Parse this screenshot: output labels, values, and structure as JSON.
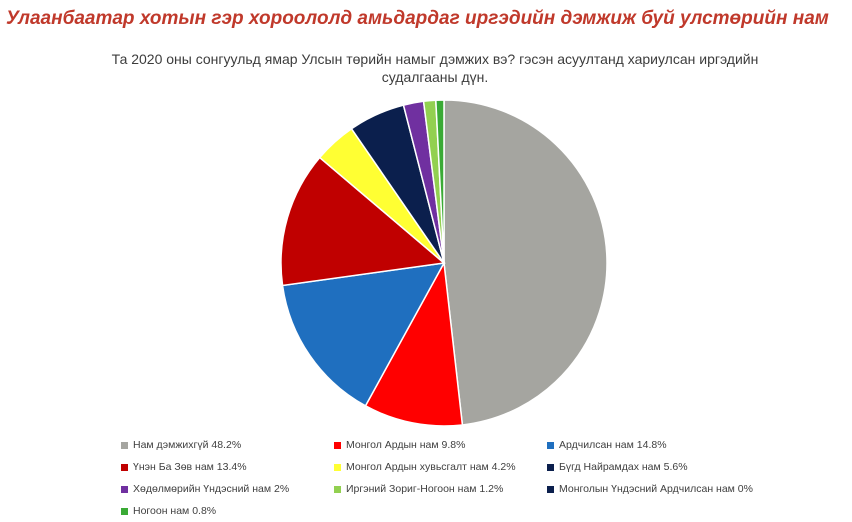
{
  "header": {
    "title": "Улаанбаатар хотын гэр хороололд амьдардаг иргэдийн дэмжиж буй улстөрийн нам"
  },
  "chart_data": {
    "type": "pie",
    "title_lines": [
      "Та 2020 оны сонгуульд ямар Улсын төрийн намыг дэмжих вэ? гэсэн асуултанд хариулсан иргэдийн",
      "судалгааны дүн."
    ],
    "legend_position": "bottom",
    "slices": [
      {
        "label": "Нам дэмжихгүй 48.2%",
        "value": 48.2,
        "color": "#a5a5a0"
      },
      {
        "label": "Монгол Ардын нам 9.8%",
        "value": 9.8,
        "color": "#ff0000"
      },
      {
        "label": "Ардчилсан нам 14.8%",
        "value": 14.8,
        "color": "#1f6fbf"
      },
      {
        "label": "Үнэн Ба Зөв нам 13.4%",
        "value": 13.4,
        "color": "#c00000"
      },
      {
        "label": "Монгол Ардын хувьсгалт нам 4.2%",
        "value": 4.2,
        "color": "#ffff33"
      },
      {
        "label": "Бүгд Найрамдах нам 5.6%",
        "value": 5.6,
        "color": "#0b1f4d"
      },
      {
        "label": "Хөдөлмөрийн Үндэсний нам 2%",
        "value": 2.0,
        "color": "#7030a0"
      },
      {
        "label": "Иргэний Зориг-Ногоон нам 1.2%",
        "value": 1.2,
        "color": "#92d050"
      },
      {
        "label": "Монголын Үндэсний Ардчилсан нам 0%",
        "value": 0.0,
        "color": "#0b1f4d"
      },
      {
        "label": "Ногоон нам 0.8%",
        "value": 0.8,
        "color": "#3aaa35"
      }
    ]
  }
}
